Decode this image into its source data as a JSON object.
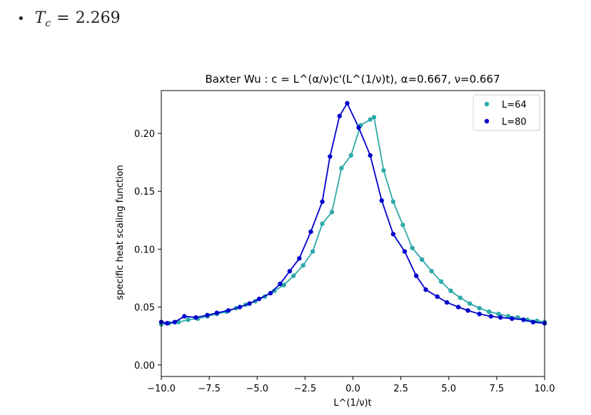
{
  "bullet": {
    "symbol": "•",
    "var": "T",
    "sub": "c",
    "eq": "=",
    "value": "2.269"
  },
  "chart_data": {
    "type": "line",
    "title": "Baxter Wu : c = L^(α/ν)c'(L^(1/ν)t), α=0.667, ν=0.667",
    "xlabel": "L^(1/ν)t",
    "ylabel": "specific heat scaling function",
    "xlim": [
      -10.0,
      10.0
    ],
    "ylim": [
      -0.01,
      0.237
    ],
    "xticks": [
      -10.0,
      -7.5,
      -5.0,
      -2.5,
      0.0,
      2.5,
      5.0,
      7.5,
      10.0
    ],
    "xtick_labels": [
      "−10.0",
      "−7.5",
      "−5.0",
      "−2.5",
      "0.0",
      "2.5",
      "5.0",
      "7.5",
      "10.0"
    ],
    "yticks": [
      0.0,
      0.05,
      0.1,
      0.15,
      0.2
    ],
    "ytick_labels": [
      "0.00",
      "0.05",
      "0.10",
      "0.15",
      "0.20"
    ],
    "grid": false,
    "legend_position": "top-right",
    "series": [
      {
        "name": "L=64",
        "color": "#2ca9a9",
        "marker": "circle",
        "x": [
          -10.0,
          -9.6,
          -9.1,
          -8.6,
          -8.1,
          -7.6,
          -7.1,
          -6.6,
          -6.1,
          -5.6,
          -5.1,
          -4.6,
          -4.1,
          -3.6,
          -3.1,
          -2.6,
          -2.1,
          -1.6,
          -1.1,
          -0.6,
          -0.1,
          0.4,
          0.9,
          1.1,
          1.6,
          2.1,
          2.6,
          3.1,
          3.6,
          4.1,
          4.6,
          5.1,
          5.6,
          6.1,
          6.6,
          7.1,
          7.6,
          8.1,
          8.6,
          9.1,
          9.6,
          10.0
        ],
        "y": [
          0.035,
          0.036,
          0.037,
          0.039,
          0.04,
          0.042,
          0.044,
          0.046,
          0.049,
          0.052,
          0.055,
          0.059,
          0.064,
          0.069,
          0.077,
          0.086,
          0.098,
          0.122,
          0.132,
          0.17,
          0.181,
          0.207,
          0.212,
          0.214,
          0.168,
          0.141,
          0.121,
          0.101,
          0.091,
          0.081,
          0.072,
          0.064,
          0.058,
          0.053,
          0.049,
          0.046,
          0.044,
          0.042,
          0.041,
          0.039,
          0.038,
          0.037
        ]
      },
      {
        "name": "L=80",
        "color": "#0000cc",
        "marker": "circle",
        "x": [
          -10.0,
          -9.7,
          -9.3,
          -8.8,
          -8.2,
          -7.6,
          -7.1,
          -6.5,
          -5.9,
          -5.4,
          -4.9,
          -4.3,
          -3.8,
          -3.3,
          -2.8,
          -2.2,
          -1.6,
          -1.2,
          -0.7,
          -0.3,
          0.3,
          0.9,
          1.5,
          2.1,
          2.7,
          3.3,
          3.8,
          4.4,
          4.9,
          5.5,
          6.0,
          6.6,
          7.2,
          7.7,
          8.3,
          8.9,
          9.4,
          10.0
        ],
        "y": [
          0.037,
          0.036,
          0.037,
          0.042,
          0.041,
          0.043,
          0.045,
          0.047,
          0.05,
          0.053,
          0.057,
          0.062,
          0.07,
          0.081,
          0.092,
          0.115,
          0.141,
          0.18,
          0.215,
          0.226,
          0.205,
          0.181,
          0.142,
          0.113,
          0.098,
          0.077,
          0.065,
          0.059,
          0.054,
          0.05,
          0.047,
          0.044,
          0.042,
          0.041,
          0.04,
          0.039,
          0.037,
          0.036
        ]
      }
    ]
  }
}
